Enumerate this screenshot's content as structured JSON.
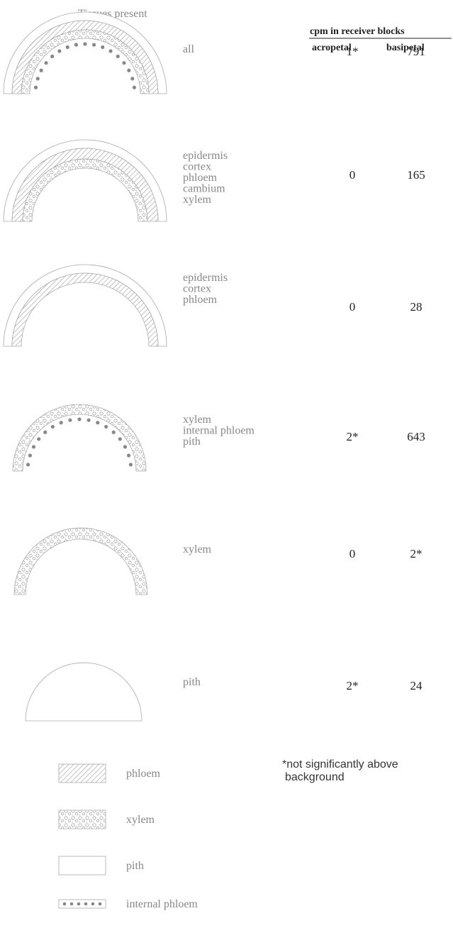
{
  "header": {
    "tissues_title": "Tissues present",
    "cpm_title": "cpm in receiver blocks",
    "acropetal": "acropetal",
    "basipetal": "basipetal"
  },
  "rows": [
    {
      "tissues": [
        "all"
      ],
      "acropetal": "1*",
      "basipetal": "791"
    },
    {
      "tissues": [
        "epidermis",
        "cortex",
        "phloem",
        "cambium",
        "xylem"
      ],
      "acropetal": "0",
      "basipetal": "165"
    },
    {
      "tissues": [
        "epidermis",
        "cortex",
        "phloem"
      ],
      "acropetal": "0",
      "basipetal": "28"
    },
    {
      "tissues": [
        "xylem",
        "internal phloem",
        "pith"
      ],
      "acropetal": "2*",
      "basipetal": "643"
    },
    {
      "tissues": [
        "xylem"
      ],
      "acropetal": "0",
      "basipetal": "2*"
    },
    {
      "tissues": [
        "pith"
      ],
      "acropetal": "2*",
      "basipetal": "24"
    }
  ],
  "legend": [
    {
      "label": "phloem"
    },
    {
      "label": "xylem"
    },
    {
      "label": "pith"
    },
    {
      "label": "internal phloem"
    }
  ],
  "footnote": [
    "*not significantly above",
    "background"
  ]
}
